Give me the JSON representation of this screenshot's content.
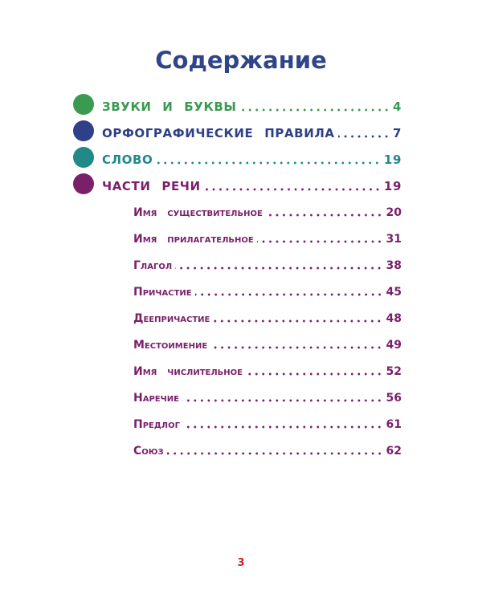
{
  "title": "Содержание",
  "sections": [
    {
      "label": "ЗВУКИ И БУКВЫ",
      "page": "4",
      "color": "#3a9a50"
    },
    {
      "label": "ОРФОГРАФИЧЕСКИЕ ПРАВИЛА",
      "page": "7",
      "color": "#2f3f88"
    },
    {
      "label": "СЛОВО",
      "page": "19",
      "color": "#21898a"
    },
    {
      "label": "ЧАСТИ РЕЧИ",
      "page": "19",
      "color": "#7a1f6a"
    }
  ],
  "subsections": [
    {
      "label": "Имя существительное",
      "page": "20"
    },
    {
      "label": "Имя прилагательное",
      "page": "31"
    },
    {
      "label": "Глагол",
      "page": "38"
    },
    {
      "label": "Причастие",
      "page": "45"
    },
    {
      "label": "Деепричастие",
      "page": "48"
    },
    {
      "label": "Местоимение",
      "page": "49"
    },
    {
      "label": "Имя числительное",
      "page": "52"
    },
    {
      "label": "Наречие",
      "page": "56"
    },
    {
      "label": "Предлог",
      "page": "61"
    },
    {
      "label": "Союз",
      "page": "62"
    }
  ],
  "page_number": "3"
}
